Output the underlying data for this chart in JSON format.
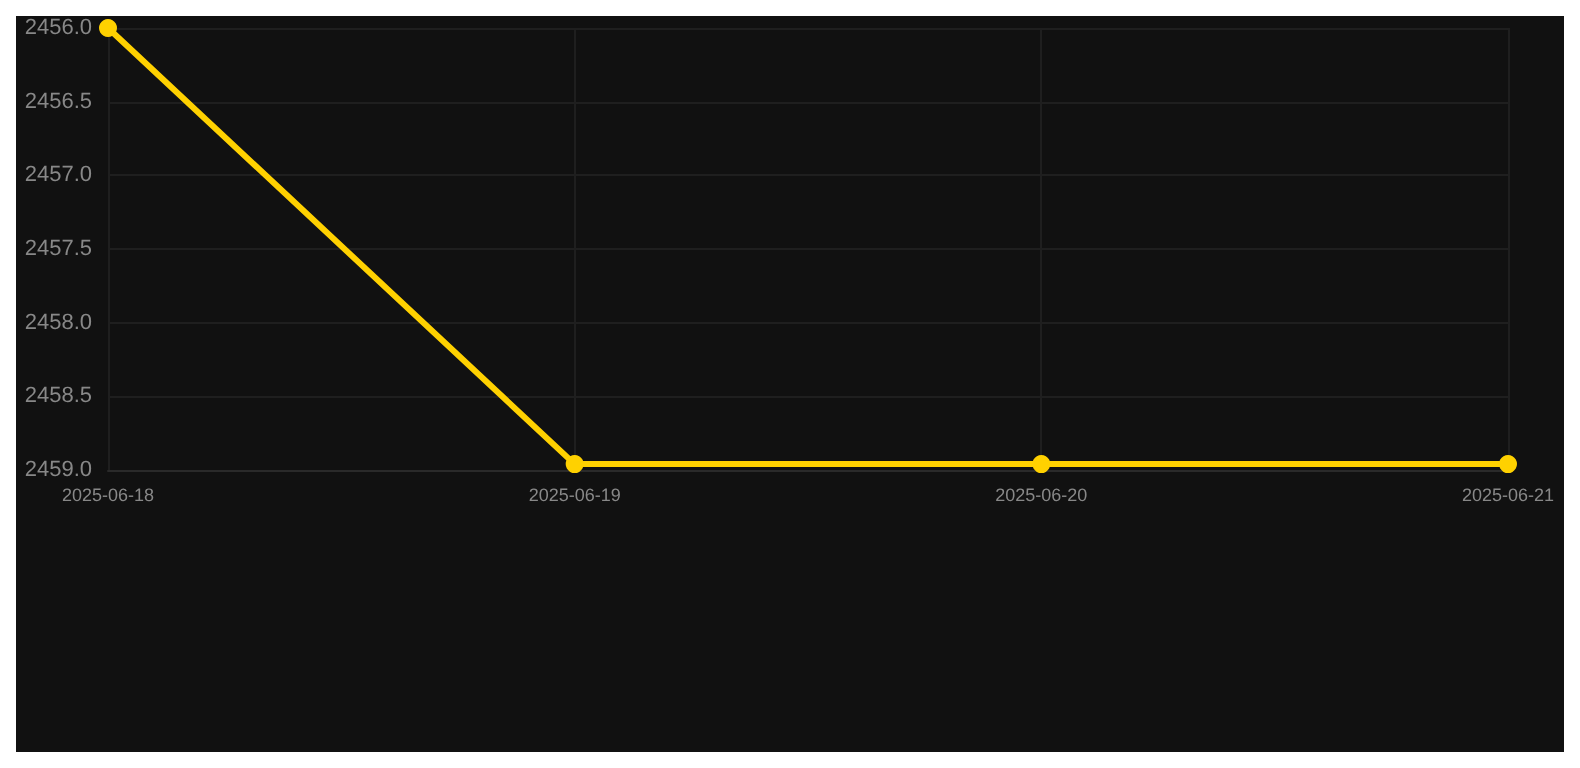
{
  "chart_data": {
    "type": "line",
    "categories": [
      "2025-06-18",
      "2025-06-19",
      "2025-06-20",
      "2025-06-21"
    ],
    "series": [
      {
        "color": "#ffd100",
        "values": [
          2456.0,
          2458.96,
          2458.96,
          2458.96
        ]
      }
    ],
    "ylim": [
      2459.0,
      2456.0
    ],
    "yticks": [
      {
        "value": 2456,
        "label": "2456.0"
      },
      {
        "value": 2456.5,
        "label": "2456.5"
      },
      {
        "value": 2457,
        "label": "2457.0"
      },
      {
        "value": 2457.5,
        "label": "2457.5"
      },
      {
        "value": 2458,
        "label": "2458.0"
      },
      {
        "value": 2458.5,
        "label": "2458.5"
      },
      {
        "value": 2459,
        "label": "2459.0"
      }
    ],
    "grid": true,
    "marker": "circle",
    "line_style": "solid"
  }
}
